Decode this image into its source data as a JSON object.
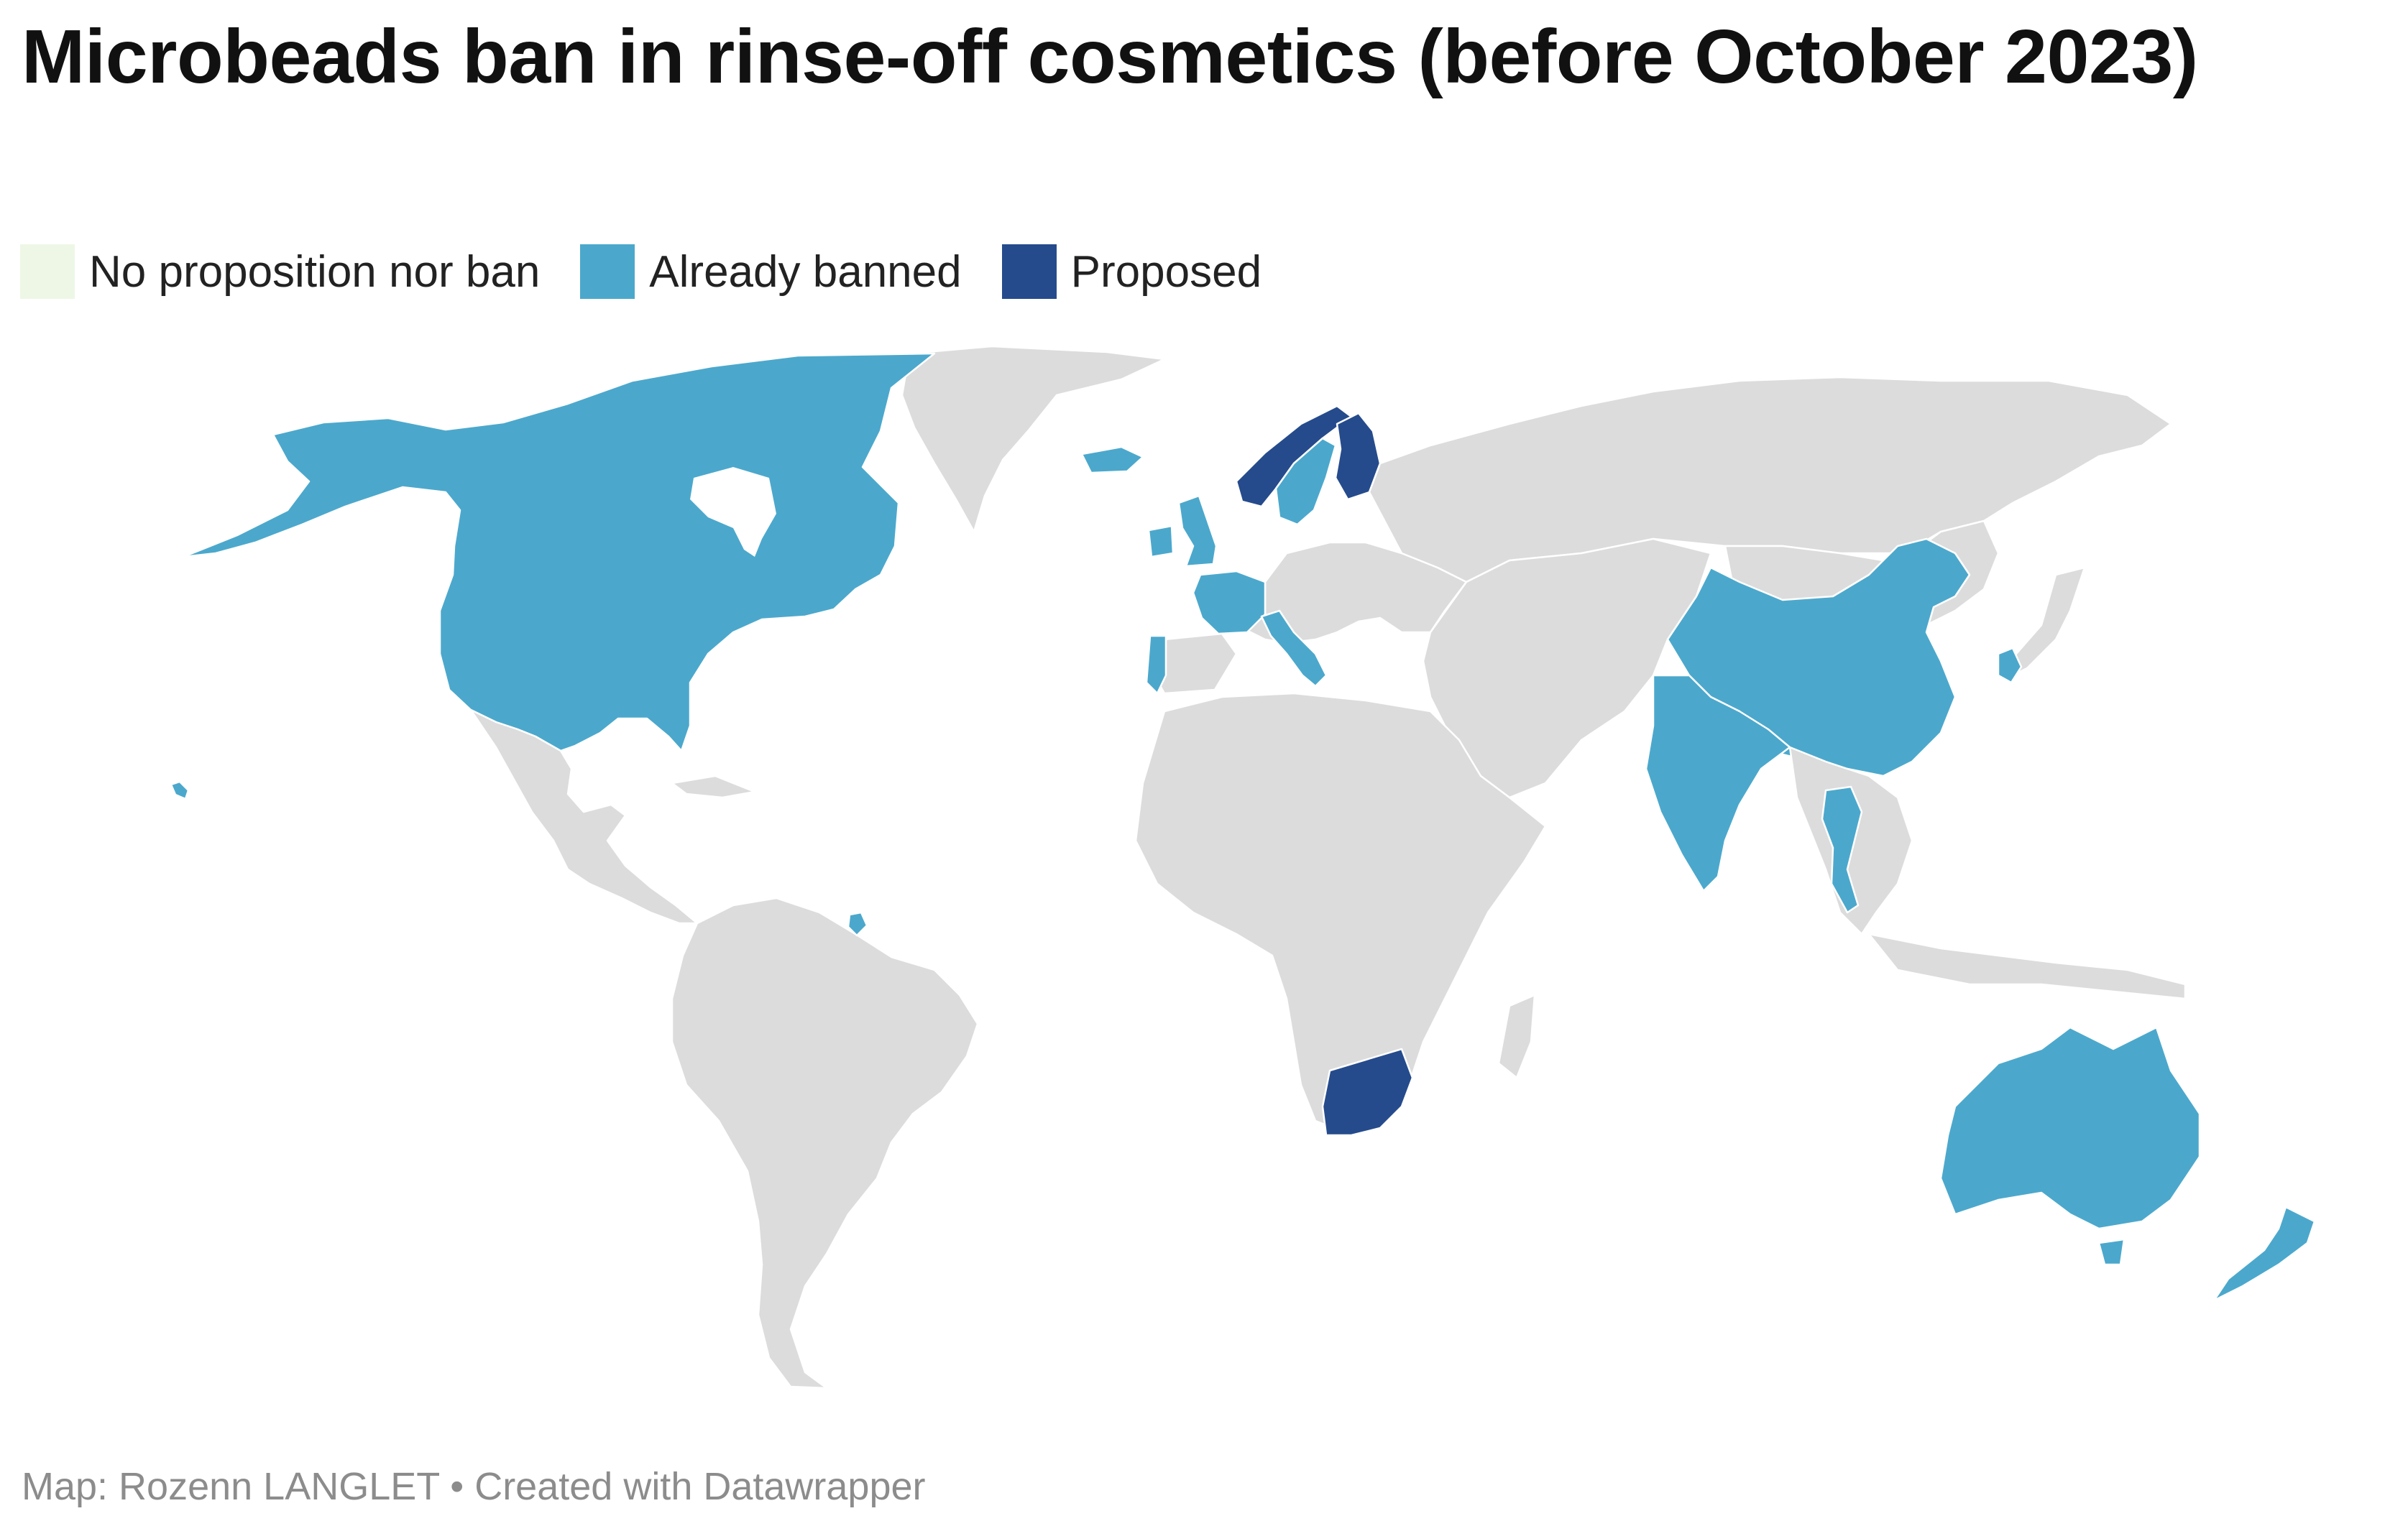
{
  "title": "Microbeads ban in rinse-off cosmetics (before October 2023)",
  "legend": [
    {
      "label": "No proposition nor ban",
      "color": "#eef7e6"
    },
    {
      "label": "Already banned",
      "color": "#4ba8cc"
    },
    {
      "label": "Proposed",
      "color": "#254b8c"
    }
  ],
  "map_colors": {
    "base": "#dcdcdc",
    "border": "#ffffff"
  },
  "source": "Map: Rozenn LANGLET • Created with Datawrapper"
}
